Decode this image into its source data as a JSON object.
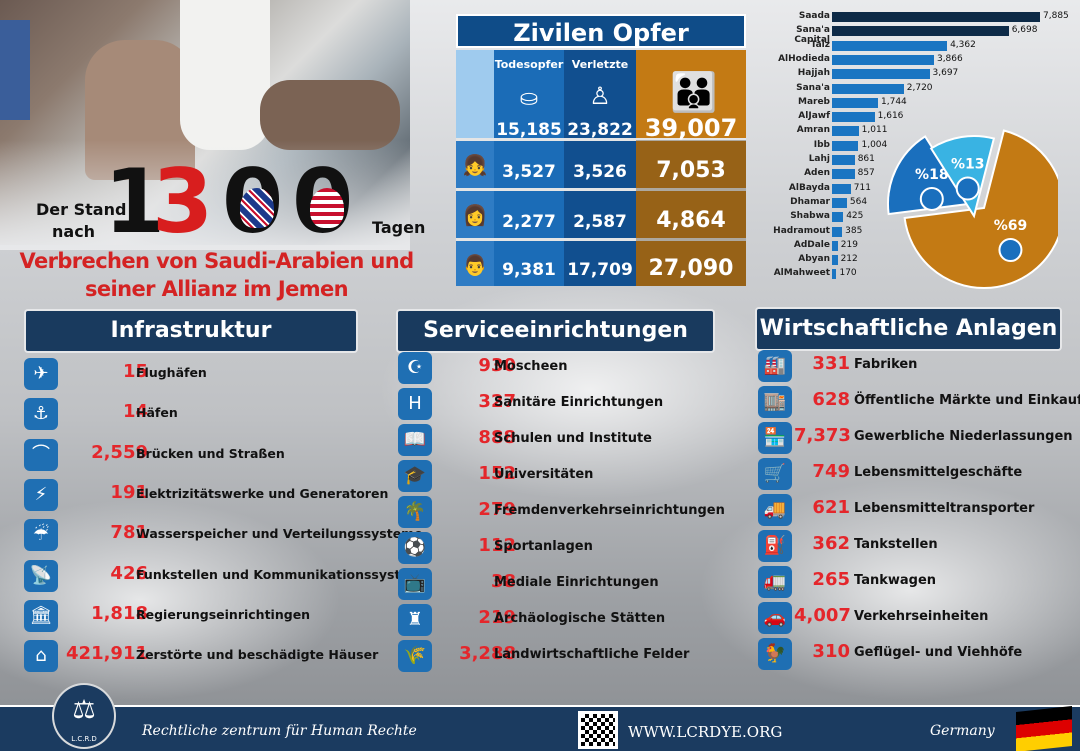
{
  "headline": {
    "prefix_top": "Der Stand",
    "prefix_bottom": "nach",
    "digit1": "1",
    "digit2": "3",
    "digit3": "0",
    "digit4": "0",
    "suffix": "Tagen",
    "line1": "Verbrechen von Saudi-Arabien und",
    "line2": "seiner Allianz im Jemen"
  },
  "casualties": {
    "title": "Zivilen Opfer",
    "col_deaths": "Todesopfer",
    "col_injured": "Verletzte",
    "rows": [
      {
        "group": "total",
        "deaths": "15,185",
        "injured": "23,822",
        "total": "39,007"
      },
      {
        "group": "children",
        "deaths": "3,527",
        "injured": "3,526",
        "total": "7,053"
      },
      {
        "group": "women",
        "deaths": "2,277",
        "injured": "2,587",
        "total": "4,864"
      },
      {
        "group": "men",
        "deaths": "9,381",
        "injured": "17,709",
        "total": "27,090"
      }
    ]
  },
  "chart_data": [
    {
      "type": "bar",
      "orientation": "horizontal",
      "color": "#1a75c2",
      "top_color": "#0d2a47",
      "categories": [
        "Saada",
        "Sana'a Capital",
        "Taiz",
        "AlHodieda",
        "Hajjah",
        "Sana'a",
        "Mareb",
        "AlJawf",
        "Amran",
        "Ibb",
        "Lahj",
        "Aden",
        "AlBayda",
        "Dhamar",
        "Shabwa",
        "Hadramout",
        "AdDale",
        "Abyan",
        "AlMahweet"
      ],
      "values": [
        7885,
        6698,
        4362,
        3866,
        3697,
        2720,
        1744,
        1616,
        1011,
        1004,
        861,
        857,
        711,
        564,
        425,
        385,
        219,
        212,
        170
      ],
      "labels": [
        "7,885",
        "6,698",
        "4,362",
        "3,866",
        "3,697",
        "2,720",
        "1,744",
        "1,616",
        "1,011",
        "1,004",
        "861",
        "857",
        "711",
        "564",
        "425",
        "385",
        "219",
        "212",
        "170"
      ]
    },
    {
      "type": "pie",
      "slices": [
        {
          "label": "%69",
          "value": 69,
          "color": "#c37a14"
        },
        {
          "label": "%18",
          "value": 18,
          "color": "#1a6fbd"
        },
        {
          "label": "%13",
          "value": 13,
          "color": "#39b3e3"
        }
      ]
    }
  ],
  "infrastructure": {
    "title": "Infrastruktur",
    "items": [
      {
        "icon": "airplane-icon",
        "glyph": "✈",
        "value": "15",
        "label": "Flughäfen"
      },
      {
        "icon": "anchor-icon",
        "glyph": "⚓",
        "value": "14",
        "label": "Häfen"
      },
      {
        "icon": "bridge-icon",
        "glyph": "⌒",
        "value": "2,559",
        "label": "Brücken und Straßen"
      },
      {
        "icon": "power-tower-icon",
        "glyph": "⚡",
        "value": "191",
        "label": "Elektrizitätswerke und Generatoren"
      },
      {
        "icon": "water-tank-icon",
        "glyph": "☔",
        "value": "781",
        "label": "Wasserspeicher und Verteilungssysteme"
      },
      {
        "icon": "satellite-dish-icon",
        "glyph": "📡",
        "value": "426",
        "label": "Funkstellen und Kommunikationssysteme"
      },
      {
        "icon": "government-building-icon",
        "glyph": "🏛",
        "value": "1,818",
        "label": "Regierungseinrichtingen"
      },
      {
        "icon": "house-icon",
        "glyph": "⌂",
        "value": "421,911",
        "label": "Zerstörte und beschädigte Häuser"
      }
    ]
  },
  "services": {
    "title": "Serviceeinrichtungen",
    "items": [
      {
        "icon": "mosque-icon",
        "glyph": "☪",
        "value": "930",
        "label": "Moscheen"
      },
      {
        "icon": "hospital-icon",
        "glyph": "H",
        "value": "327",
        "label": "Sanitäre Einrichtungen"
      },
      {
        "icon": "book-icon",
        "glyph": "📖",
        "value": "888",
        "label": "Schulen und Institute"
      },
      {
        "icon": "graduation-cap-icon",
        "glyph": "🎓",
        "value": "152",
        "label": "Universitäten"
      },
      {
        "icon": "palm-tree-icon",
        "glyph": "🌴",
        "value": "279",
        "label": "Fremdenverkehrseinrichtungen"
      },
      {
        "icon": "stadium-icon",
        "glyph": "⚽",
        "value": "112",
        "label": "Sportanlagen"
      },
      {
        "icon": "tv-icon",
        "glyph": "📺",
        "value": "38",
        "label": "Mediale Einrichtungen"
      },
      {
        "icon": "castle-icon",
        "glyph": "♜",
        "value": "219",
        "label": "Archäologische Stätten"
      },
      {
        "icon": "wheat-icon",
        "glyph": "🌾",
        "value": "3,288",
        "label": "Landwirtschaftliche Felder"
      }
    ]
  },
  "economy": {
    "title": "Wirtschaftliche Anlagen",
    "items": [
      {
        "icon": "factory-icon",
        "glyph": "🏭",
        "value": "331",
        "label": "Fabriken"
      },
      {
        "icon": "market-icon",
        "glyph": "🏬",
        "value": "628",
        "label": "Öffentliche Märkte und Einkaufszentren"
      },
      {
        "icon": "shop-icon",
        "glyph": "🏪",
        "value": "7,373",
        "label": "Gewerbliche Niederlassungen"
      },
      {
        "icon": "food-store-icon",
        "glyph": "🛒",
        "value": "749",
        "label": "Lebensmittelgeschäfte"
      },
      {
        "icon": "truck-icon",
        "glyph": "🚚",
        "value": "621",
        "label": "Lebensmitteltransporter"
      },
      {
        "icon": "fuel-pump-icon",
        "glyph": "⛽",
        "value": "362",
        "label": "Tankstellen"
      },
      {
        "icon": "tanker-truck-icon",
        "glyph": "🚛",
        "value": "265",
        "label": "Tankwagen"
      },
      {
        "icon": "car-icon",
        "glyph": "🚗",
        "value": "4,007",
        "label": "Verkehrseinheiten"
      },
      {
        "icon": "rooster-icon",
        "glyph": "🐓",
        "value": "310",
        "label": "Geflügel- und Viehhöfe"
      }
    ]
  },
  "footer": {
    "logo_text": "L.C.R.D",
    "org": "Rechtliche zentrum für Human Rechte",
    "url": "WWW.LCRDYE.ORG",
    "country": "Germany"
  }
}
